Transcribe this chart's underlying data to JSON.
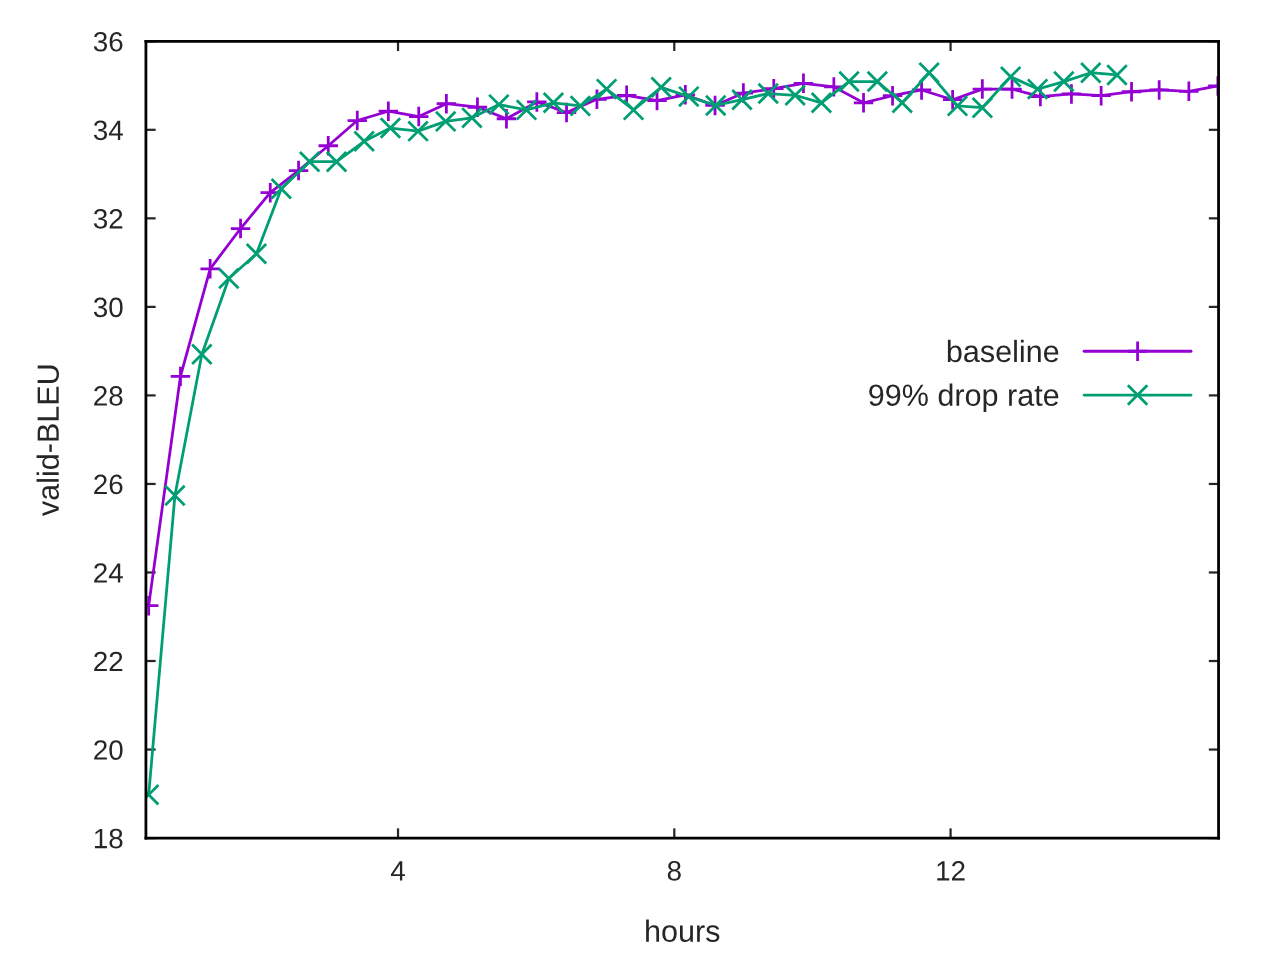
{
  "chart_data": {
    "type": "line",
    "xlabel": "hours",
    "ylabel": "valid-BLEU",
    "xlim": [
      0.35,
      15.88
    ],
    "ylim": [
      18,
      36
    ],
    "xticks": [
      4,
      8,
      12
    ],
    "yticks": [
      18,
      20,
      22,
      24,
      26,
      28,
      30,
      32,
      34,
      36
    ],
    "grid": false,
    "legend": "right",
    "line_style": "solid",
    "series": [
      {
        "name": "baseline",
        "color": "#9400d3",
        "marker": "plus",
        "x": [
          0.39,
          0.85,
          1.28,
          1.72,
          2.15,
          2.56,
          2.99,
          3.41,
          3.86,
          4.3,
          4.7,
          5.15,
          5.57,
          6.01,
          6.44,
          6.88,
          7.31,
          7.75,
          8.16,
          8.59,
          9.0,
          9.44,
          9.87,
          10.31,
          10.74,
          11.16,
          11.58,
          12.03,
          12.46,
          12.89,
          13.3,
          13.75,
          14.18,
          14.62,
          15.02,
          15.45,
          15.87
        ],
        "values": [
          23.25,
          28.43,
          30.86,
          31.77,
          32.58,
          33.08,
          33.64,
          34.21,
          34.42,
          34.3,
          34.59,
          34.51,
          34.25,
          34.63,
          34.39,
          34.69,
          34.78,
          34.66,
          34.79,
          34.55,
          34.83,
          34.93,
          35.05,
          34.97,
          34.61,
          34.77,
          34.9,
          34.68,
          34.92,
          34.92,
          34.75,
          34.81,
          34.77,
          34.86,
          34.9,
          34.87,
          34.99
        ]
      },
      {
        "name": "99% drop rate",
        "color": "#009e73",
        "marker": "cross",
        "x": [
          0.39,
          0.77,
          1.16,
          1.55,
          1.95,
          2.31,
          2.72,
          3.11,
          3.51,
          3.89,
          4.29,
          4.69,
          5.07,
          5.46,
          5.86,
          6.25,
          6.64,
          7.02,
          7.41,
          7.81,
          8.21,
          8.6,
          8.98,
          9.36,
          9.75,
          10.13,
          10.53,
          10.94,
          11.3,
          11.69,
          12.1,
          12.46,
          12.87,
          13.26,
          13.64,
          14.03,
          14.41
        ],
        "values": [
          18.98,
          25.74,
          28.93,
          30.64,
          31.2,
          32.67,
          33.28,
          33.28,
          33.74,
          34.04,
          33.97,
          34.19,
          34.27,
          34.57,
          34.45,
          34.61,
          34.54,
          34.92,
          34.45,
          34.96,
          34.75,
          34.55,
          34.68,
          34.82,
          34.78,
          34.61,
          35.09,
          35.09,
          34.61,
          35.29,
          34.54,
          34.5,
          35.2,
          34.92,
          35.09,
          35.29,
          35.24
        ]
      }
    ]
  }
}
